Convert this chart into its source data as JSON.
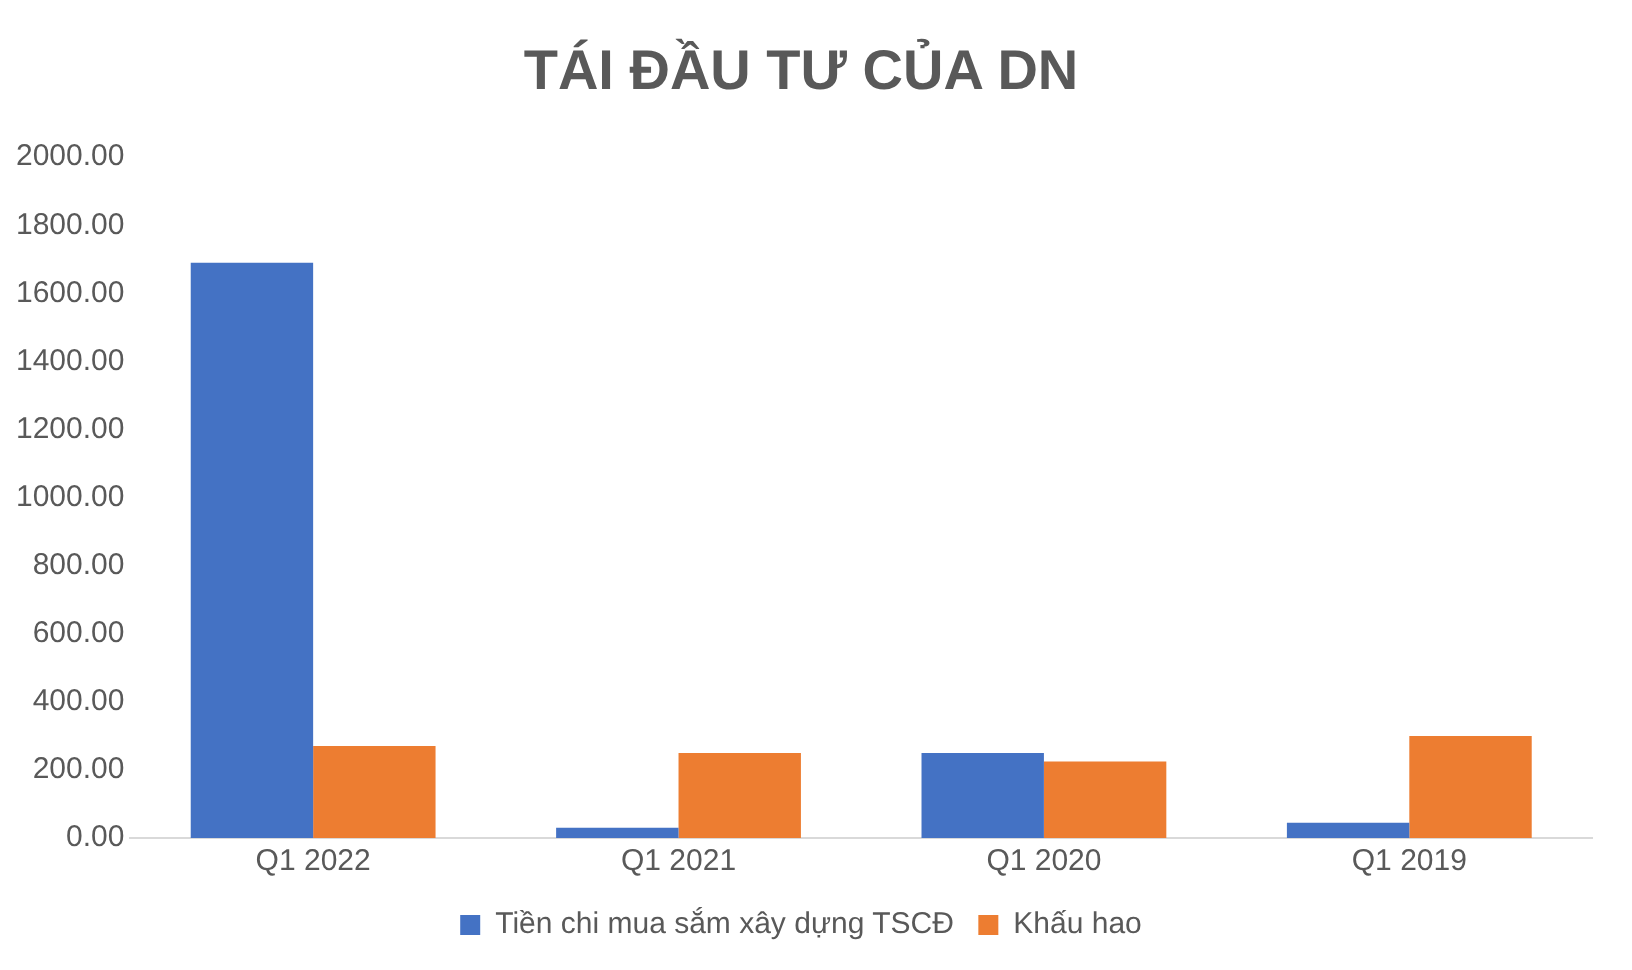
{
  "chart_data": {
    "type": "bar",
    "title": "TÁI ĐẦU TƯ CỦA DN",
    "categories": [
      "Q1 2022",
      "Q1 2021",
      "Q1 2020",
      "Q1 2019"
    ],
    "series": [
      {
        "name": "Tiền chi mua sắm xây dựng TSCĐ",
        "color": "#4472c4",
        "values": [
          1690,
          30,
          250,
          45
        ]
      },
      {
        "name": "Khấu hao",
        "color": "#ed7d31",
        "values": [
          270,
          250,
          225,
          300
        ]
      }
    ],
    "ylim": [
      0,
      2000
    ],
    "yticks": [
      {
        "value": 0,
        "label": "0.00"
      },
      {
        "value": 200,
        "label": "200.00"
      },
      {
        "value": 400,
        "label": "400.00"
      },
      {
        "value": 600,
        "label": "600.00"
      },
      {
        "value": 800,
        "label": "800.00"
      },
      {
        "value": 1000,
        "label": "1000.00"
      },
      {
        "value": 1200,
        "label": "1200.00"
      },
      {
        "value": 1400,
        "label": "1400.00"
      },
      {
        "value": 1600,
        "label": "1600.00"
      },
      {
        "value": 1800,
        "label": "1800.00"
      },
      {
        "value": 2000,
        "label": "2000.00"
      }
    ],
    "grid": false,
    "legend": "bottom"
  }
}
